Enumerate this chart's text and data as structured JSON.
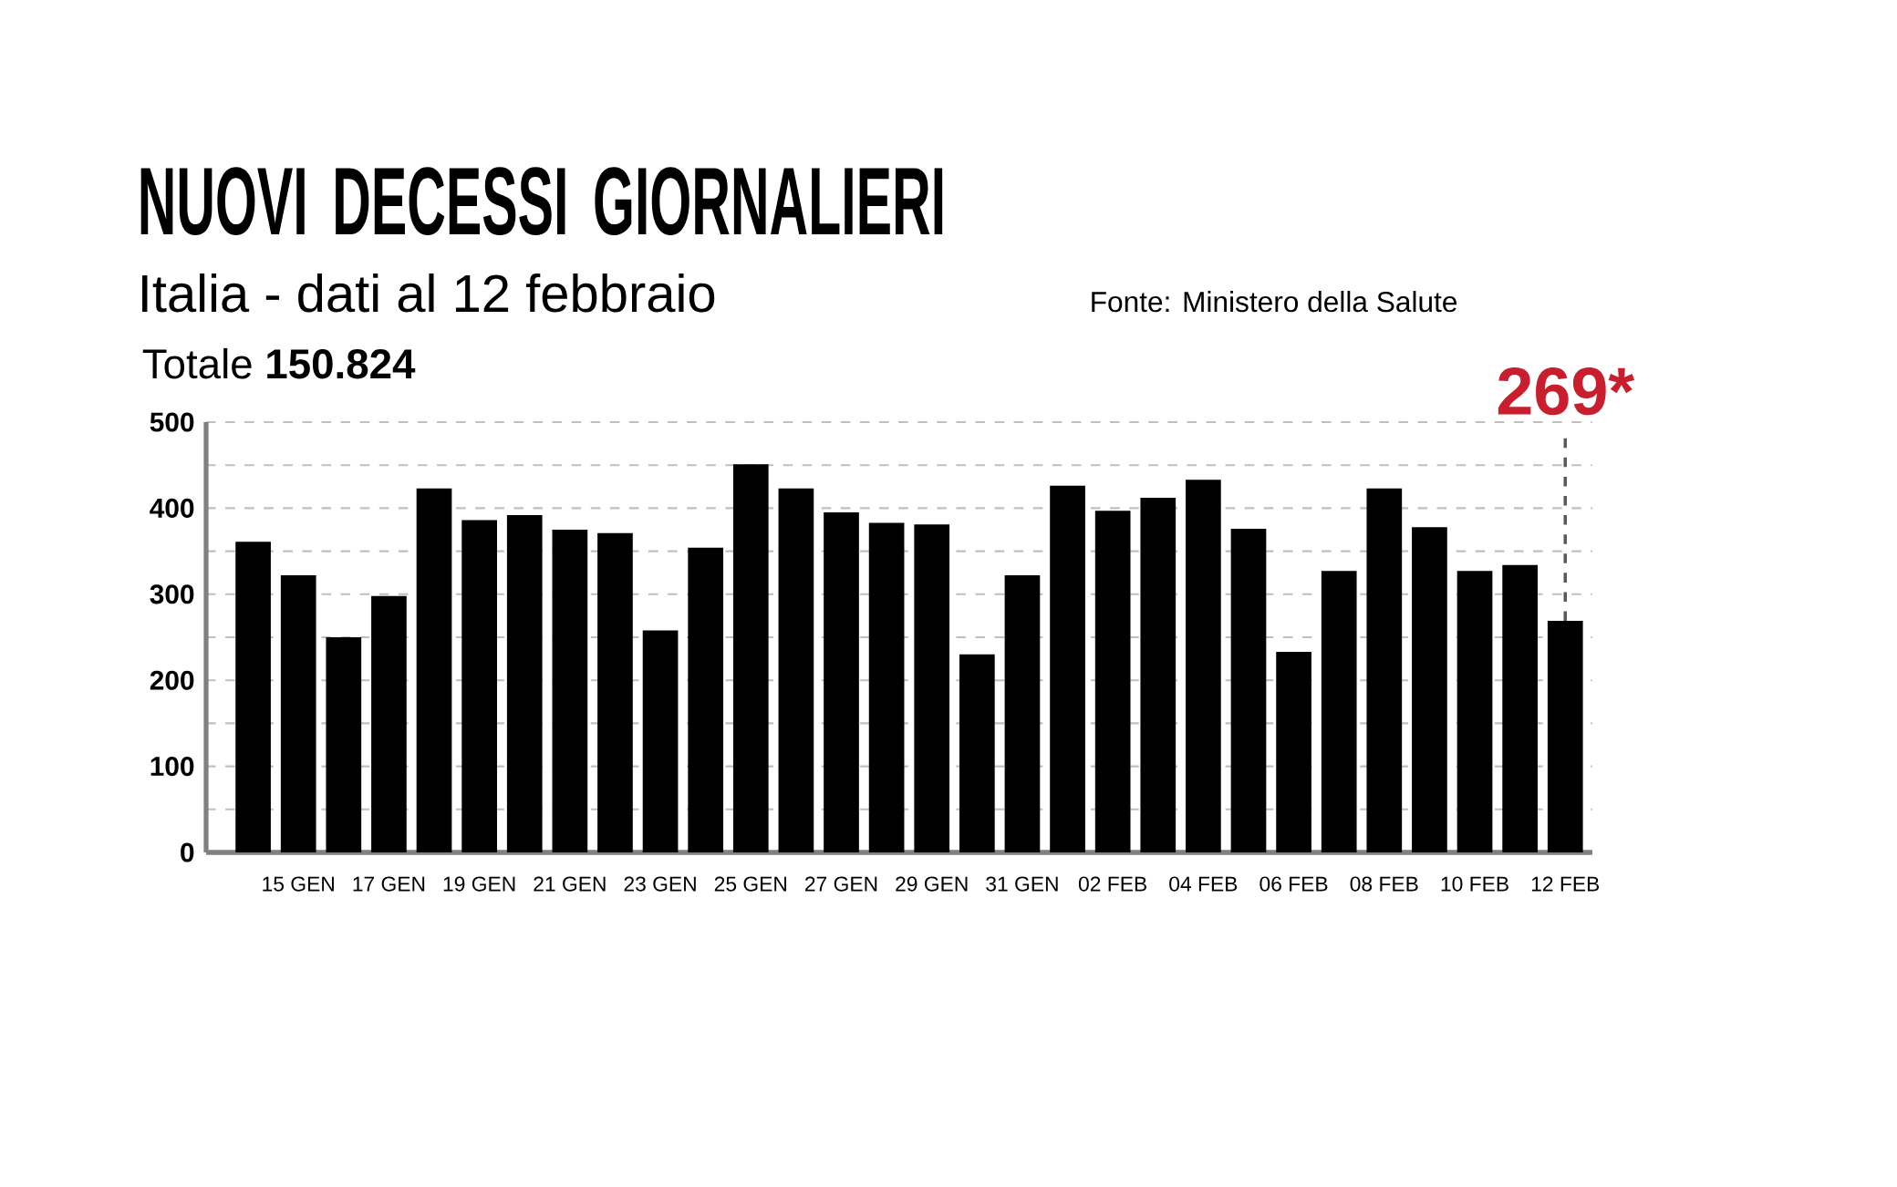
{
  "chart_data": {
    "type": "bar",
    "title": "NUOVI DECESSI GIORNALIERI",
    "subtitle": "Italia - dati al 12 febbraio",
    "annotations": [
      "Totale **150.824**",
      "Fonte: Ministero della Salute"
    ],
    "categories": [
      null,
      "15 GEN",
      null,
      "17 GEN",
      null,
      "19 GEN",
      null,
      "21 GEN",
      null,
      "23 GEN",
      null,
      "25 GEN",
      null,
      "27 GEN",
      null,
      "29 GEN",
      null,
      "31 GEN",
      null,
      "02 FEB",
      null,
      "04 FEB",
      null,
      "06 FEB",
      null,
      "08 FEB",
      null,
      "10 FEB",
      null,
      "12 FEB"
    ],
    "values": [
      361,
      322,
      250,
      298,
      423,
      386,
      392,
      375,
      371,
      258,
      354,
      451,
      423,
      395,
      383,
      381,
      230,
      322,
      426,
      397,
      412,
      433,
      376,
      233,
      327,
      423,
      378,
      327,
      334,
      269
    ],
    "value_labels": [
      null,
      null,
      null,
      null,
      null,
      null,
      null,
      null,
      null,
      null,
      null,
      null,
      null,
      null,
      null,
      null,
      null,
      null,
      null,
      null,
      null,
      null,
      null,
      null,
      null,
      null,
      null,
      null,
      null,
      "269*"
    ],
    "color": "#000000",
    "ylim": [
      0,
      500
    ],
    "yticks": [
      0,
      {
        "value": 50,
        "label": null
      },
      100,
      {
        "value": 150,
        "label": null
      },
      200,
      {
        "value": 250,
        "label": null
      },
      300,
      {
        "value": 350,
        "label": null
      },
      400,
      {
        "value": 450,
        "label": null
      },
      500
    ],
    "grid": "y"
  }
}
